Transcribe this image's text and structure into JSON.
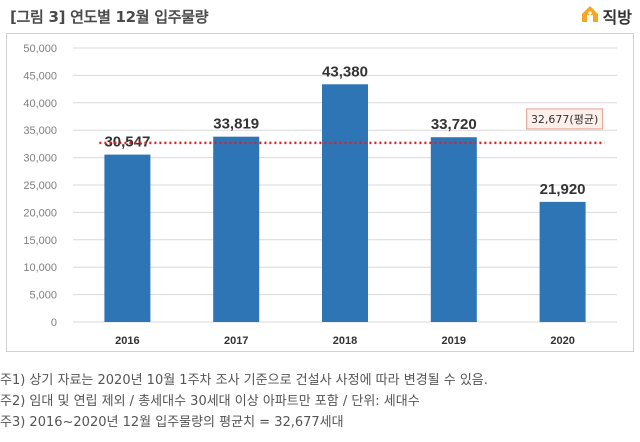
{
  "title": "[그림 3] 연도별 12월 입주물량",
  "brand": {
    "name": "직방",
    "icon": "house-logo-icon",
    "color": "#f5a623"
  },
  "colors": {
    "bar": "#2e75b6",
    "average_line": "#e02020",
    "label_box_border": "#e8a090",
    "label_box_fill": "#fdf0ea"
  },
  "chart_data": {
    "type": "bar",
    "categories": [
      "2016",
      "2017",
      "2018",
      "2019",
      "2020"
    ],
    "values": [
      30547,
      33819,
      43380,
      33720,
      21920
    ],
    "value_labels": [
      "30,547",
      "33,819",
      "43,380",
      "33,720",
      "21,920"
    ],
    "ylim": [
      0,
      50000
    ],
    "yticks": [
      0,
      5000,
      10000,
      15000,
      20000,
      25000,
      30000,
      35000,
      40000,
      45000,
      50000
    ],
    "ytick_labels": [
      "0",
      "5,000",
      "10,000",
      "15,000",
      "20,000",
      "25,000",
      "30,000",
      "35,000",
      "40,000",
      "45,000",
      "50,000"
    ],
    "grid": true,
    "average": {
      "value": 32677,
      "label": "32,677(평균)"
    },
    "xlabel": "",
    "ylabel": ""
  },
  "notes": [
    "주1) 상기 자료는 2020년 10월 1주차 조사 기준으로 건설사 사정에 따라 변경될 수 있음.",
    "주2) 임대 및 연립 제외 / 총세대수 30세대 이상 아파트만 포함 / 단위: 세대수",
    "주3) 2016~2020년 12월 입주물량의 평균치 = 32,677세대"
  ]
}
